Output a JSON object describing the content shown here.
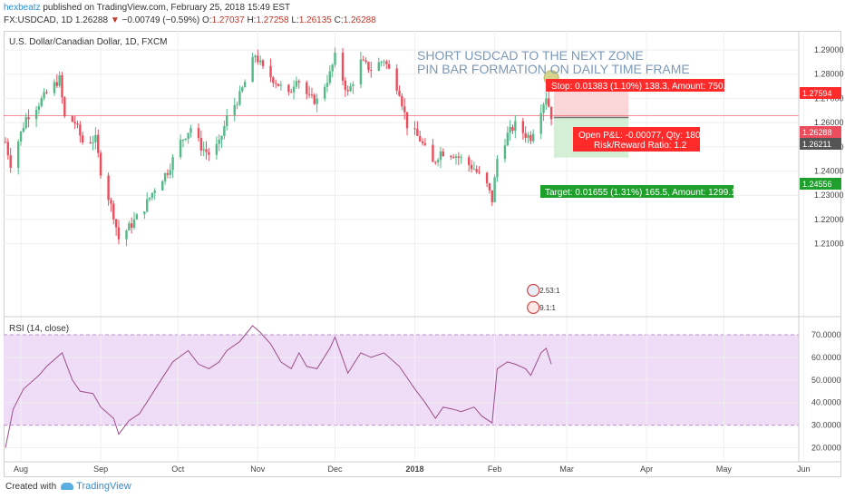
{
  "header": {
    "user": "hexbeatz",
    "published": "published on TradingView.com, February 25, 2018 15:49 EST",
    "symbol": "FX:USDCAD, 1D",
    "last": "1.26288",
    "change_arrow": "▼",
    "change": "−0.00749 (−0.59%)",
    "o_label": "O:",
    "o_value": "1.27037",
    "h_label": "H:",
    "h_value": "1.27258",
    "l_label": "L:",
    "l_value": "1.26135",
    "c_label": "C:",
    "c_value": "1.26288"
  },
  "annotation": {
    "line1": "SHORT USDCAD TO THE NEXT ZONE",
    "line2": "PIN BAR FORMATION ON DAILY TIME FRAME"
  },
  "position": {
    "stop_label": "Stop: 0.01383 (1.10%) 138.3, Amount: 750.01",
    "pnl_label": "Open P&L: -0.00077, Qty: 18076",
    "rr_label": "Risk/Reward Ratio: 1.2",
    "target_label": "Target: 0.01655 (1.31%) 165.5, Amount: 1299.16",
    "stop_price": 1.27594,
    "entry_price": 1.26211,
    "target_price": 1.24556,
    "current_price": 1.26288,
    "stop_tag": "1.27594",
    "current_tag": "1.26288",
    "entry_tag": "1.26211",
    "target_tag": "1.24556"
  },
  "footer": {
    "created_with": "Created with",
    "brand": "TradingView"
  },
  "colors": {
    "up": "#53b987",
    "down": "#eb4d5c",
    "rsi": "#9c4e8a",
    "rsi_band": "#efdcf7",
    "accent": "#2a8fd6"
  },
  "chart_data": [
    {
      "type": "candlestick",
      "title": "U.S. Dollar/Canadian Dollar, 1D, FXCM",
      "ylim": [
        1.203,
        1.298
      ],
      "y_ticks": [
        "1.29000",
        "1.28000",
        "1.27000",
        "1.26000",
        "1.25000",
        "1.24000",
        "1.23000",
        "1.22000",
        "1.21000"
      ],
      "x_ticks": [
        "Aug",
        "Sep",
        "Oct",
        "Nov",
        "Dec",
        "2018",
        "Feb",
        "Mar",
        "Apr",
        "May",
        "Jun"
      ],
      "close_path": [
        [
          "2017-07-26",
          1.252
        ],
        [
          "2017-07-28",
          1.243
        ],
        [
          "2017-08-03",
          1.262
        ],
        [
          "2017-08-08",
          1.268
        ],
        [
          "2017-08-11",
          1.272
        ],
        [
          "2017-08-16",
          1.278
        ],
        [
          "2017-08-18",
          1.262
        ],
        [
          "2017-08-22",
          1.26
        ],
        [
          "2017-08-25",
          1.252
        ],
        [
          "2017-08-30",
          1.253
        ],
        [
          "2017-09-01",
          1.24
        ],
        [
          "2017-09-06",
          1.222
        ],
        [
          "2017-09-08",
          1.212
        ],
        [
          "2017-09-13",
          1.218
        ],
        [
          "2017-09-18",
          1.225
        ],
        [
          "2017-09-22",
          1.233
        ],
        [
          "2017-09-27",
          1.24
        ],
        [
          "2017-10-02",
          1.252
        ],
        [
          "2017-10-06",
          1.258
        ],
        [
          "2017-10-10",
          1.25
        ],
        [
          "2017-10-13",
          1.247
        ],
        [
          "2017-10-17",
          1.251
        ],
        [
          "2017-10-20",
          1.262
        ],
        [
          "2017-10-25",
          1.271
        ],
        [
          "2017-10-31",
          1.288
        ],
        [
          "2017-11-03",
          1.282
        ],
        [
          "2017-11-08",
          1.277
        ],
        [
          "2017-11-13",
          1.271
        ],
        [
          "2017-11-16",
          1.279
        ],
        [
          "2017-11-21",
          1.27
        ],
        [
          "2017-11-24",
          1.269
        ],
        [
          "2017-11-29",
          1.28
        ],
        [
          "2017-12-01",
          1.287
        ],
        [
          "2017-12-06",
          1.272
        ],
        [
          "2017-12-11",
          1.285
        ],
        [
          "2017-12-15",
          1.282
        ],
        [
          "2017-12-20",
          1.286
        ],
        [
          "2017-12-26",
          1.273
        ],
        [
          "2017-12-29",
          1.259
        ],
        [
          "2018-01-03",
          1.253
        ],
        [
          "2018-01-08",
          1.243
        ],
        [
          "2018-01-11",
          1.248
        ],
        [
          "2018-01-16",
          1.247
        ],
        [
          "2018-01-19",
          1.245
        ],
        [
          "2018-01-24",
          1.241
        ],
        [
          "2018-01-29",
          1.234
        ],
        [
          "2018-01-31",
          1.228
        ],
        [
          "2018-02-02",
          1.245
        ],
        [
          "2018-02-06",
          1.255
        ],
        [
          "2018-02-09",
          1.259
        ],
        [
          "2018-02-13",
          1.255
        ],
        [
          "2018-02-15",
          1.254
        ],
        [
          "2018-02-19",
          1.266
        ],
        [
          "2018-02-21",
          1.271
        ],
        [
          "2018-02-23",
          1.2629
        ]
      ],
      "markers": [
        {
          "date": "2018-02-23",
          "price": 1.2785,
          "shape": "circle",
          "color": "#d6d48a"
        },
        {
          "date": "2018-02-16",
          "label": "2.53:1",
          "kind": "event",
          "flag": "US"
        },
        {
          "date": "2018-02-16",
          "label": "9.1:1",
          "kind": "event",
          "flag": "CA"
        }
      ]
    },
    {
      "type": "line",
      "title": "RSI (14, close)",
      "ylim": [
        15,
        73
      ],
      "y_ticks": [
        "70.0000",
        "60.0000",
        "50.0000",
        "40.0000",
        "30.0000",
        "20.0000"
      ],
      "band": [
        30,
        70
      ],
      "points": [
        [
          "2017-07-26",
          20
        ],
        [
          "2017-07-29",
          37
        ],
        [
          "2017-08-02",
          46
        ],
        [
          "2017-08-08",
          52
        ],
        [
          "2017-08-11",
          56
        ],
        [
          "2017-08-17",
          62
        ],
        [
          "2017-08-21",
          50
        ],
        [
          "2017-08-24",
          45
        ],
        [
          "2017-08-29",
          44
        ],
        [
          "2017-09-01",
          38
        ],
        [
          "2017-09-06",
          33
        ],
        [
          "2017-09-08",
          26
        ],
        [
          "2017-09-12",
          32
        ],
        [
          "2017-09-16",
          35
        ],
        [
          "2017-09-20",
          42
        ],
        [
          "2017-09-25",
          51
        ],
        [
          "2017-09-29",
          58
        ],
        [
          "2017-10-05",
          63
        ],
        [
          "2017-10-09",
          57
        ],
        [
          "2017-10-13",
          55
        ],
        [
          "2017-10-17",
          58
        ],
        [
          "2017-10-20",
          63
        ],
        [
          "2017-10-25",
          67
        ],
        [
          "2017-10-30",
          74
        ],
        [
          "2017-11-02",
          71
        ],
        [
          "2017-11-06",
          66
        ],
        [
          "2017-11-10",
          58
        ],
        [
          "2017-11-14",
          55
        ],
        [
          "2017-11-17",
          62
        ],
        [
          "2017-11-20",
          56
        ],
        [
          "2017-11-24",
          55
        ],
        [
          "2017-11-29",
          64
        ],
        [
          "2017-12-01",
          69
        ],
        [
          "2017-12-06",
          53
        ],
        [
          "2017-12-11",
          62
        ],
        [
          "2017-12-15",
          60
        ],
        [
          "2017-12-20",
          62
        ],
        [
          "2017-12-26",
          56
        ],
        [
          "2018-01-01",
          46
        ],
        [
          "2018-01-05",
          40
        ],
        [
          "2018-01-09",
          33
        ],
        [
          "2018-01-12",
          38
        ],
        [
          "2018-01-16",
          37
        ],
        [
          "2018-01-19",
          36
        ],
        [
          "2018-01-24",
          38
        ],
        [
          "2018-01-27",
          34
        ],
        [
          "2018-01-31",
          31
        ],
        [
          "2018-02-02",
          55
        ],
        [
          "2018-02-06",
          58
        ],
        [
          "2018-02-09",
          57
        ],
        [
          "2018-02-13",
          55
        ],
        [
          "2018-02-15",
          52
        ],
        [
          "2018-02-19",
          62
        ],
        [
          "2018-02-21",
          64
        ],
        [
          "2018-02-23",
          57
        ]
      ]
    }
  ]
}
